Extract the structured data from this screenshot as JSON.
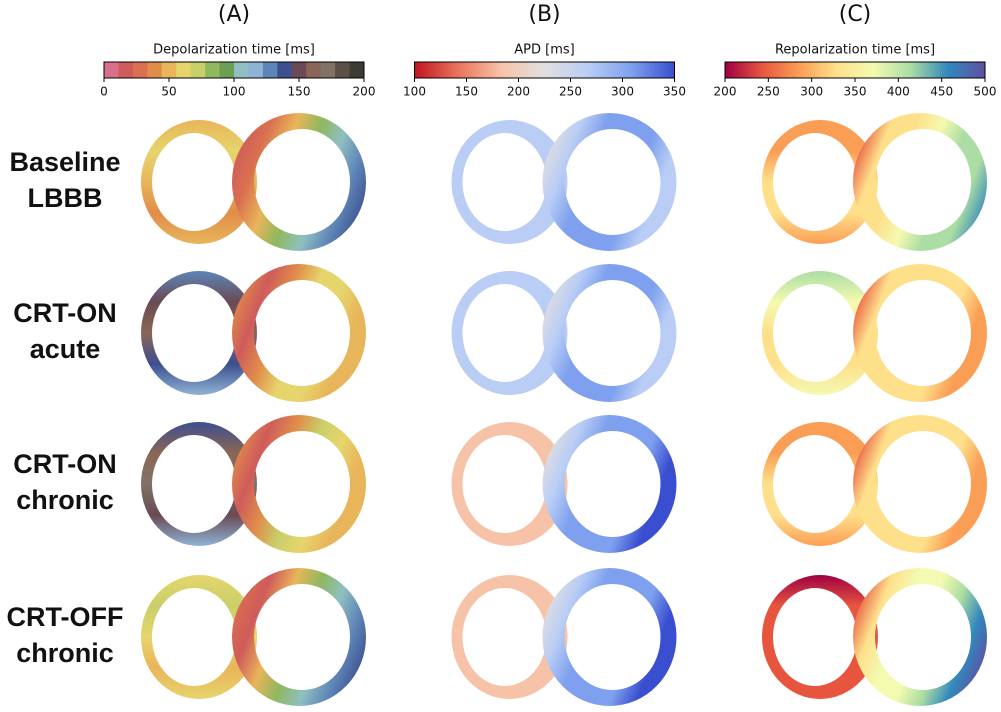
{
  "panels": [
    {
      "label": "(A)",
      "colorbar": {
        "title": "Depolarization time [ms]",
        "lim": [
          0,
          200
        ],
        "ticks": [
          0,
          50,
          100,
          150,
          200
        ],
        "discrete": true,
        "colors": [
          "#d9708a",
          "#cf5b5b",
          "#d9704f",
          "#e08d4a",
          "#e9b55a",
          "#e6d56c",
          "#c9cf6a",
          "#8fb85f",
          "#6c9e54",
          "#8fbfc0",
          "#8fb3d4",
          "#5e85b8",
          "#3d4f8f",
          "#6a4a55",
          "#8a6656",
          "#807366",
          "#5a5048",
          "#3e3a34"
        ]
      }
    },
    {
      "label": "(B)",
      "colorbar": {
        "title": "APD [ms]",
        "lim": [
          100,
          350
        ],
        "ticks": [
          100,
          150,
          200,
          250,
          300,
          350
        ],
        "discrete": false,
        "colors": [
          "#c0151f",
          "#e9735a",
          "#f7c3a8",
          "#e2dfe0",
          "#b9cdf5",
          "#7ea0ee",
          "#3a4fd0"
        ]
      }
    },
    {
      "label": "(C)",
      "colorbar": {
        "title": "Repolarization time [ms]",
        "lim": [
          200,
          500
        ],
        "ticks": [
          200,
          250,
          300,
          350,
          400,
          450,
          500
        ],
        "discrete": false,
        "colors": [
          "#9e0142",
          "#e8553f",
          "#fb9e55",
          "#fee08b",
          "#f4fab0",
          "#abdda4",
          "#3288bd",
          "#5e4fa2"
        ]
      }
    }
  ],
  "rows": [
    [
      "Baseline",
      "LBBB"
    ],
    [
      "CRT-ON",
      "acute"
    ],
    [
      "CRT-ON",
      "chronic"
    ],
    [
      "CRT-OFF",
      "chronic"
    ]
  ]
}
